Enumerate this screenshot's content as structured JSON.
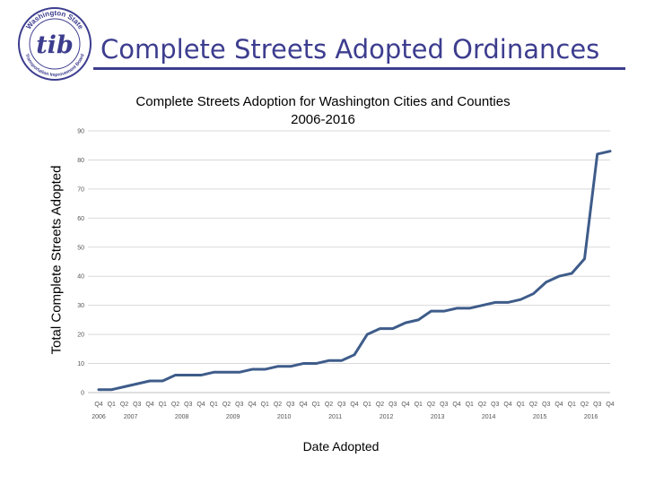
{
  "slide": {
    "title": "Complete Streets Adopted Ordinances",
    "logo": {
      "icon": "tib-logo",
      "text": "tib",
      "ring_top": "Washington State",
      "ring_bottom": "Transportation Improvement Board",
      "color": "#3d3d8f"
    }
  },
  "colors": {
    "accent": "#3d3d8f",
    "series": "#3e5c8a",
    "grid": "#d9d9d9"
  },
  "chart_data": {
    "type": "line",
    "title": "Complete Streets Adoption for Washington Cities and Counties 2006-2016",
    "title_lines": [
      "Complete Streets Adoption for Washington Cities and Counties",
      "2006-2016"
    ],
    "xlabel": "Date Adopted",
    "ylabel": "Total Complete Streets Adopted",
    "ylim": [
      0,
      90
    ],
    "yticks": [
      0,
      10,
      20,
      30,
      40,
      50,
      60,
      70,
      80,
      90
    ],
    "grid": true,
    "legend": "none",
    "year_groups": [
      {
        "year": "2006",
        "quarters": [
          "Q4"
        ]
      },
      {
        "year": "2007",
        "quarters": [
          "Q1",
          "Q2",
          "Q3",
          "Q4"
        ]
      },
      {
        "year": "2008",
        "quarters": [
          "Q1",
          "Q2",
          "Q3",
          "Q4"
        ]
      },
      {
        "year": "2009",
        "quarters": [
          "Q1",
          "Q2",
          "Q3",
          "Q4"
        ]
      },
      {
        "year": "2010",
        "quarters": [
          "Q1",
          "Q2",
          "Q3",
          "Q4"
        ]
      },
      {
        "year": "2011",
        "quarters": [
          "Q1",
          "Q2",
          "Q3",
          "Q4"
        ]
      },
      {
        "year": "2012",
        "quarters": [
          "Q1",
          "Q2",
          "Q3",
          "Q4"
        ]
      },
      {
        "year": "2013",
        "quarters": [
          "Q1",
          "Q2",
          "Q3",
          "Q4"
        ]
      },
      {
        "year": "2014",
        "quarters": [
          "Q1",
          "Q2",
          "Q3",
          "Q4"
        ]
      },
      {
        "year": "2015",
        "quarters": [
          "Q1",
          "Q2",
          "Q3",
          "Q4"
        ]
      },
      {
        "year": "2016",
        "quarters": [
          "Q1",
          "Q2",
          "Q3",
          "Q4"
        ]
      }
    ],
    "values": [
      1,
      1,
      2,
      3,
      4,
      4,
      6,
      6,
      6,
      7,
      7,
      7,
      8,
      8,
      9,
      9,
      10,
      10,
      11,
      11,
      13,
      20,
      22,
      22,
      24,
      25,
      28,
      28,
      29,
      29,
      30,
      31,
      31,
      32,
      34,
      38,
      40,
      41,
      46,
      82,
      83
    ]
  }
}
